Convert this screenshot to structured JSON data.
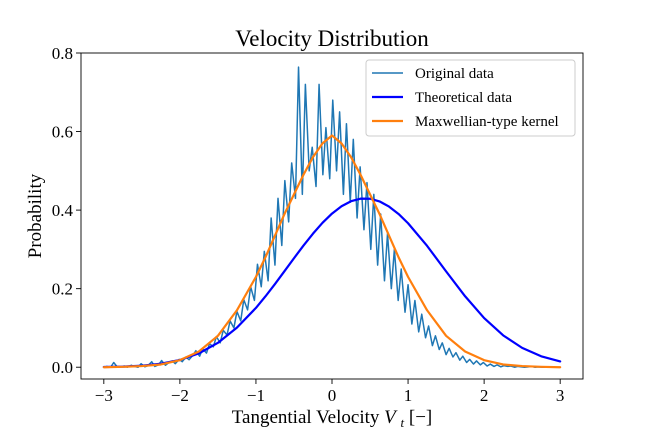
{
  "chart_data": {
    "type": "line",
    "title": "Velocity Distribution",
    "xlabel": {
      "prefix": "Tangential Velocity ",
      "var": "V",
      "sub": "t",
      "suffix": "[−]"
    },
    "ylabel": "Probability",
    "xlim": [
      -3.3,
      3.3
    ],
    "ylim": [
      -0.03,
      0.8
    ],
    "xticks": [
      -3,
      -2,
      -1,
      0,
      1,
      2,
      3
    ],
    "xtick_labels": [
      "−3",
      "−2",
      "−1",
      "0",
      "1",
      "2",
      "3"
    ],
    "yticks": [
      0.0,
      0.2,
      0.4,
      0.6,
      0.8
    ],
    "ytick_labels": [
      "0.0",
      "0.2",
      "0.4",
      "0.6",
      "0.8"
    ],
    "grid": false,
    "legend_position": "top-right",
    "series": [
      {
        "name": "Original data",
        "color": "#1f77b4",
        "stroke": 1.5,
        "x": [
          -3.0,
          -2.96,
          -2.91,
          -2.87,
          -2.82,
          -2.78,
          -2.73,
          -2.69,
          -2.64,
          -2.6,
          -2.55,
          -2.51,
          -2.46,
          -2.42,
          -2.37,
          -2.33,
          -2.28,
          -2.24,
          -2.19,
          -2.15,
          -2.1,
          -2.06,
          -2.01,
          -1.97,
          -1.92,
          -1.88,
          -1.83,
          -1.79,
          -1.74,
          -1.7,
          -1.65,
          -1.61,
          -1.56,
          -1.52,
          -1.47,
          -1.43,
          -1.38,
          -1.34,
          -1.29,
          -1.25,
          -1.2,
          -1.16,
          -1.11,
          -1.07,
          -1.02,
          -0.98,
          -0.93,
          -0.89,
          -0.84,
          -0.8,
          -0.75,
          -0.71,
          -0.66,
          -0.62,
          -0.57,
          -0.53,
          -0.48,
          -0.44,
          -0.39,
          -0.35,
          -0.3,
          -0.26,
          -0.21,
          -0.17,
          -0.12,
          -0.08,
          -0.03,
          0.01,
          0.06,
          0.1,
          0.15,
          0.19,
          0.24,
          0.28,
          0.33,
          0.37,
          0.42,
          0.46,
          0.51,
          0.55,
          0.6,
          0.64,
          0.69,
          0.73,
          0.78,
          0.82,
          0.87,
          0.91,
          0.96,
          1.0,
          1.05,
          1.09,
          1.14,
          1.18,
          1.23,
          1.27,
          1.32,
          1.36,
          1.41,
          1.45,
          1.5,
          1.54,
          1.59,
          1.63,
          1.68,
          1.72,
          1.77,
          1.81,
          1.86,
          1.9,
          1.95,
          1.99,
          2.04,
          2.08,
          2.13,
          2.17,
          2.22,
          2.26,
          2.31,
          2.35,
          2.4,
          2.44,
          2.49,
          2.53,
          2.58,
          2.62,
          2.67,
          2.71,
          2.76,
          2.8,
          2.85,
          2.89,
          2.94,
          3.0
        ],
        "values": [
          0.0,
          0.002,
          0.0,
          0.012,
          0.0,
          0.001,
          0.003,
          0.0,
          0.005,
          0.002,
          0.0,
          0.009,
          0.001,
          0.004,
          0.014,
          0.002,
          0.006,
          0.017,
          0.005,
          0.011,
          0.016,
          0.009,
          0.02,
          0.014,
          0.026,
          0.019,
          0.03,
          0.042,
          0.028,
          0.047,
          0.036,
          0.06,
          0.052,
          0.078,
          0.062,
          0.094,
          0.082,
          0.118,
          0.1,
          0.142,
          0.118,
          0.172,
          0.146,
          0.205,
          0.17,
          0.262,
          0.205,
          0.295,
          0.22,
          0.38,
          0.26,
          0.43,
          0.31,
          0.475,
          0.37,
          0.52,
          0.43,
          0.764,
          0.44,
          0.72,
          0.5,
          0.56,
          0.46,
          0.72,
          0.49,
          0.61,
          0.48,
          0.68,
          0.5,
          0.65,
          0.44,
          0.62,
          0.42,
          0.58,
          0.38,
          0.51,
          0.35,
          0.47,
          0.3,
          0.44,
          0.26,
          0.39,
          0.22,
          0.34,
          0.2,
          0.3,
          0.17,
          0.25,
          0.14,
          0.21,
          0.11,
          0.17,
          0.09,
          0.135,
          0.075,
          0.105,
          0.055,
          0.08,
          0.045,
          0.062,
          0.032,
          0.048,
          0.026,
          0.037,
          0.018,
          0.028,
          0.012,
          0.02,
          0.008,
          0.016,
          0.006,
          0.012,
          0.003,
          0.008,
          0.002,
          0.006,
          0.001,
          0.004,
          0.002,
          0.003,
          0.0,
          0.002,
          0.001,
          0.0,
          0.001,
          0.002,
          0.0,
          0.001,
          0.0,
          0.0,
          0.001,
          0.0,
          0.0,
          0.0
        ]
      },
      {
        "name": "Theoretical data",
        "color": "#0000ff",
        "stroke": 2.2,
        "x": [
          -3.0,
          -2.75,
          -2.5,
          -2.25,
          -2.0,
          -1.75,
          -1.5,
          -1.25,
          -1.0,
          -0.875,
          -0.75,
          -0.625,
          -0.5,
          -0.375,
          -0.25,
          -0.125,
          0.0,
          0.125,
          0.25,
          0.375,
          0.5,
          0.625,
          0.75,
          0.875,
          1.0,
          1.25,
          1.5,
          1.75,
          2.0,
          2.25,
          2.5,
          2.75,
          3.0
        ],
        "values": [
          0.0006,
          0.0016,
          0.0039,
          0.0088,
          0.0184,
          0.0352,
          0.0621,
          0.1009,
          0.151,
          0.1804,
          0.2118,
          0.2445,
          0.2775,
          0.3097,
          0.3401,
          0.3676,
          0.3911,
          0.4098,
          0.4226,
          0.4292,
          0.429,
          0.4222,
          0.409,
          0.3902,
          0.3666,
          0.309,
          0.244,
          0.1806,
          0.1251,
          0.0811,
          0.0492,
          0.0279,
          0.0148
        ]
      },
      {
        "name": "Maxwellian-type kernel",
        "color": "#ff7f0e",
        "stroke": 2.2,
        "x": [
          -3.0,
          -2.75,
          -2.5,
          -2.25,
          -2.0,
          -1.75,
          -1.5,
          -1.25,
          -1.0,
          -0.875,
          -0.75,
          -0.625,
          -0.5,
          -0.375,
          -0.25,
          -0.125,
          0.0,
          0.125,
          0.25,
          0.375,
          0.5,
          0.625,
          0.75,
          0.875,
          1.0,
          1.25,
          1.5,
          1.75,
          2.0,
          2.25,
          2.5,
          2.75,
          3.0
        ],
        "values": [
          0.0,
          0.001,
          0.003,
          0.007,
          0.018,
          0.04,
          0.08,
          0.145,
          0.23,
          0.28,
          0.335,
          0.39,
          0.44,
          0.49,
          0.535,
          0.57,
          0.59,
          0.57,
          0.535,
          0.49,
          0.44,
          0.39,
          0.335,
          0.28,
          0.23,
          0.145,
          0.08,
          0.04,
          0.018,
          0.007,
          0.003,
          0.001,
          0.0
        ]
      }
    ]
  }
}
